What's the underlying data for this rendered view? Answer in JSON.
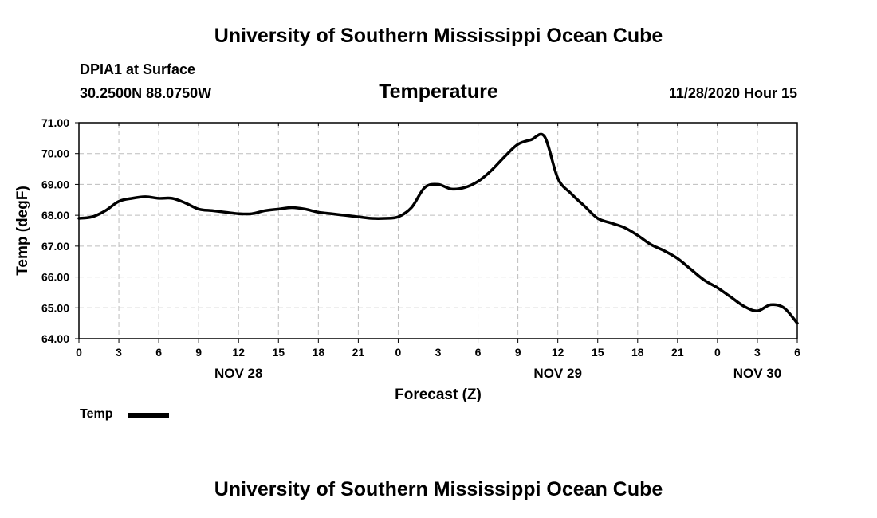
{
  "header": {
    "title": "University of Southern Mississippi Ocean Cube",
    "station": "DPIA1 at Surface",
    "coords": "30.2500N 88.0750W",
    "variable": "Temperature",
    "timestamp": "11/28/2020 Hour 15"
  },
  "footer": {
    "title": "University of Southern Mississippi Ocean Cube"
  },
  "chart_data": {
    "type": "line",
    "title": "Temperature",
    "xlabel": "Forecast (Z)",
    "ylabel": "Temp (degF)",
    "ylim": [
      64.0,
      71.0
    ],
    "xlim": [
      0,
      54
    ],
    "grid": true,
    "x_tick_labels": [
      "0",
      "3",
      "6",
      "9",
      "12",
      "15",
      "18",
      "21",
      "0",
      "3",
      "6",
      "9",
      "12",
      "15",
      "18",
      "21",
      "0",
      "3",
      "6"
    ],
    "y_tick_labels": [
      "64.00",
      "65.00",
      "66.00",
      "67.00",
      "68.00",
      "69.00",
      "70.00",
      "71.00"
    ],
    "date_labels": [
      {
        "label": "NOV 28",
        "hour": 12
      },
      {
        "label": "NOV 29",
        "hour": 36
      },
      {
        "label": "NOV 30",
        "hour": 51
      }
    ],
    "legend": [
      {
        "name": "Temp",
        "color": "#000000"
      }
    ],
    "legend_position": "bottom-left",
    "series": [
      {
        "name": "Temp",
        "color": "#000000",
        "x": [
          0,
          1,
          2,
          3,
          4,
          5,
          6,
          7,
          8,
          9,
          10,
          11,
          12,
          13,
          14,
          15,
          16,
          17,
          18,
          19,
          20,
          21,
          22,
          23,
          24,
          25,
          26,
          27,
          28,
          29,
          30,
          31,
          32,
          33,
          34,
          35,
          36,
          37,
          38,
          39,
          40,
          41,
          42,
          43,
          44,
          45,
          46,
          47,
          48,
          49,
          50,
          51,
          52,
          53,
          54
        ],
        "values": [
          67.9,
          67.95,
          68.15,
          68.45,
          68.55,
          68.6,
          68.55,
          68.55,
          68.4,
          68.2,
          68.15,
          68.1,
          68.05,
          68.05,
          68.15,
          68.2,
          68.25,
          68.2,
          68.1,
          68.05,
          68.0,
          67.95,
          67.9,
          67.9,
          67.95,
          68.25,
          68.9,
          69.0,
          68.85,
          68.9,
          69.1,
          69.45,
          69.9,
          70.3,
          70.45,
          70.55,
          69.2,
          68.7,
          68.3,
          67.9,
          67.75,
          67.6,
          67.35,
          67.05,
          66.85,
          66.6,
          66.25,
          65.9,
          65.65,
          65.35,
          65.05,
          64.9,
          65.1,
          65.0,
          64.5
        ]
      }
    ]
  }
}
